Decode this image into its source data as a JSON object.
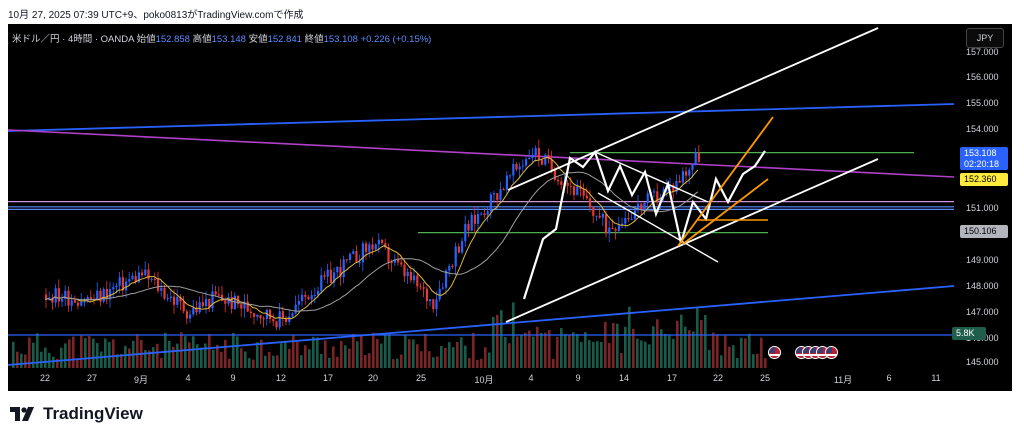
{
  "caption": "10月 27, 2025 07:39 UTC+9、poko0813がTradingView.comで作成",
  "legend": {
    "symbol": "米ドル／円 · 4時間 · OANDA",
    "open_label": "始値",
    "open": "152.858",
    "high_label": "高値",
    "high": "153.148",
    "low_label": "安値",
    "low": "152.841",
    "close_label": "終値",
    "close": "153.108",
    "change": "+0.226 (+0.15%)"
  },
  "currency": "JPY",
  "price_axis": {
    "labels": [
      "157.000",
      "156.000",
      "155.000",
      "154.000",
      "151.000",
      "149.000",
      "148.000",
      "147.000",
      "146.000",
      "145.000"
    ],
    "current_price": "153.108",
    "countdown": "02:20:18",
    "yellow_tag": "152.360",
    "gray_tag": "150.106",
    "volume_tag": "5.8K",
    "colors": {
      "current": "#2962ff",
      "yellow": "#ffeb3b",
      "gray": "#b2b5be",
      "volume": "#1e5e4a"
    }
  },
  "time_axis": {
    "labels": [
      "22",
      "27",
      "9月",
      "4",
      "9",
      "12",
      "17",
      "20",
      "25",
      "10月",
      "4",
      "9",
      "14",
      "17",
      "22",
      "25",
      "11月",
      "6",
      "11"
    ]
  },
  "events": {
    "flag_icon": "us-flag-icon",
    "groups": [
      1,
      5
    ]
  },
  "footer": {
    "brand": "TradingView",
    "logo_icon": "tradingview-logo-icon"
  },
  "chart_data": {
    "type": "candlestick",
    "symbol": "USD/JPY",
    "interval": "4時間",
    "ylim": [
      145.5,
      157.6
    ],
    "approx_path": [
      {
        "date": "08-22",
        "price": 147.6
      },
      {
        "date": "08-27",
        "price": 147.4
      },
      {
        "date": "09-04",
        "price": 148.4
      },
      {
        "date": "09-09",
        "price": 146.9
      },
      {
        "date": "09-12",
        "price": 147.5
      },
      {
        "date": "09-17",
        "price": 146.6
      },
      {
        "date": "09-20",
        "price": 147.7
      },
      {
        "date": "09-25",
        "price": 149.6
      },
      {
        "date": "10-01",
        "price": 147.3
      },
      {
        "date": "10-04",
        "price": 150.0
      },
      {
        "date": "10-09",
        "price": 153.2
      },
      {
        "date": "10-14",
        "price": 151.5
      },
      {
        "date": "10-17",
        "price": 150.2
      },
      {
        "date": "10-22",
        "price": 151.8
      },
      {
        "date": "10-25",
        "price": 153.1
      }
    ],
    "horizontal_lines": [
      {
        "price": 153.1,
        "color": "#4caf50"
      },
      {
        "price": 150.0,
        "color": "#4caf50"
      },
      {
        "price": 151.2,
        "color": "#ce93d8"
      },
      {
        "price": 151.0,
        "color": "#5b8cff"
      },
      {
        "price": 150.9,
        "color": "#5b8cff"
      }
    ]
  }
}
